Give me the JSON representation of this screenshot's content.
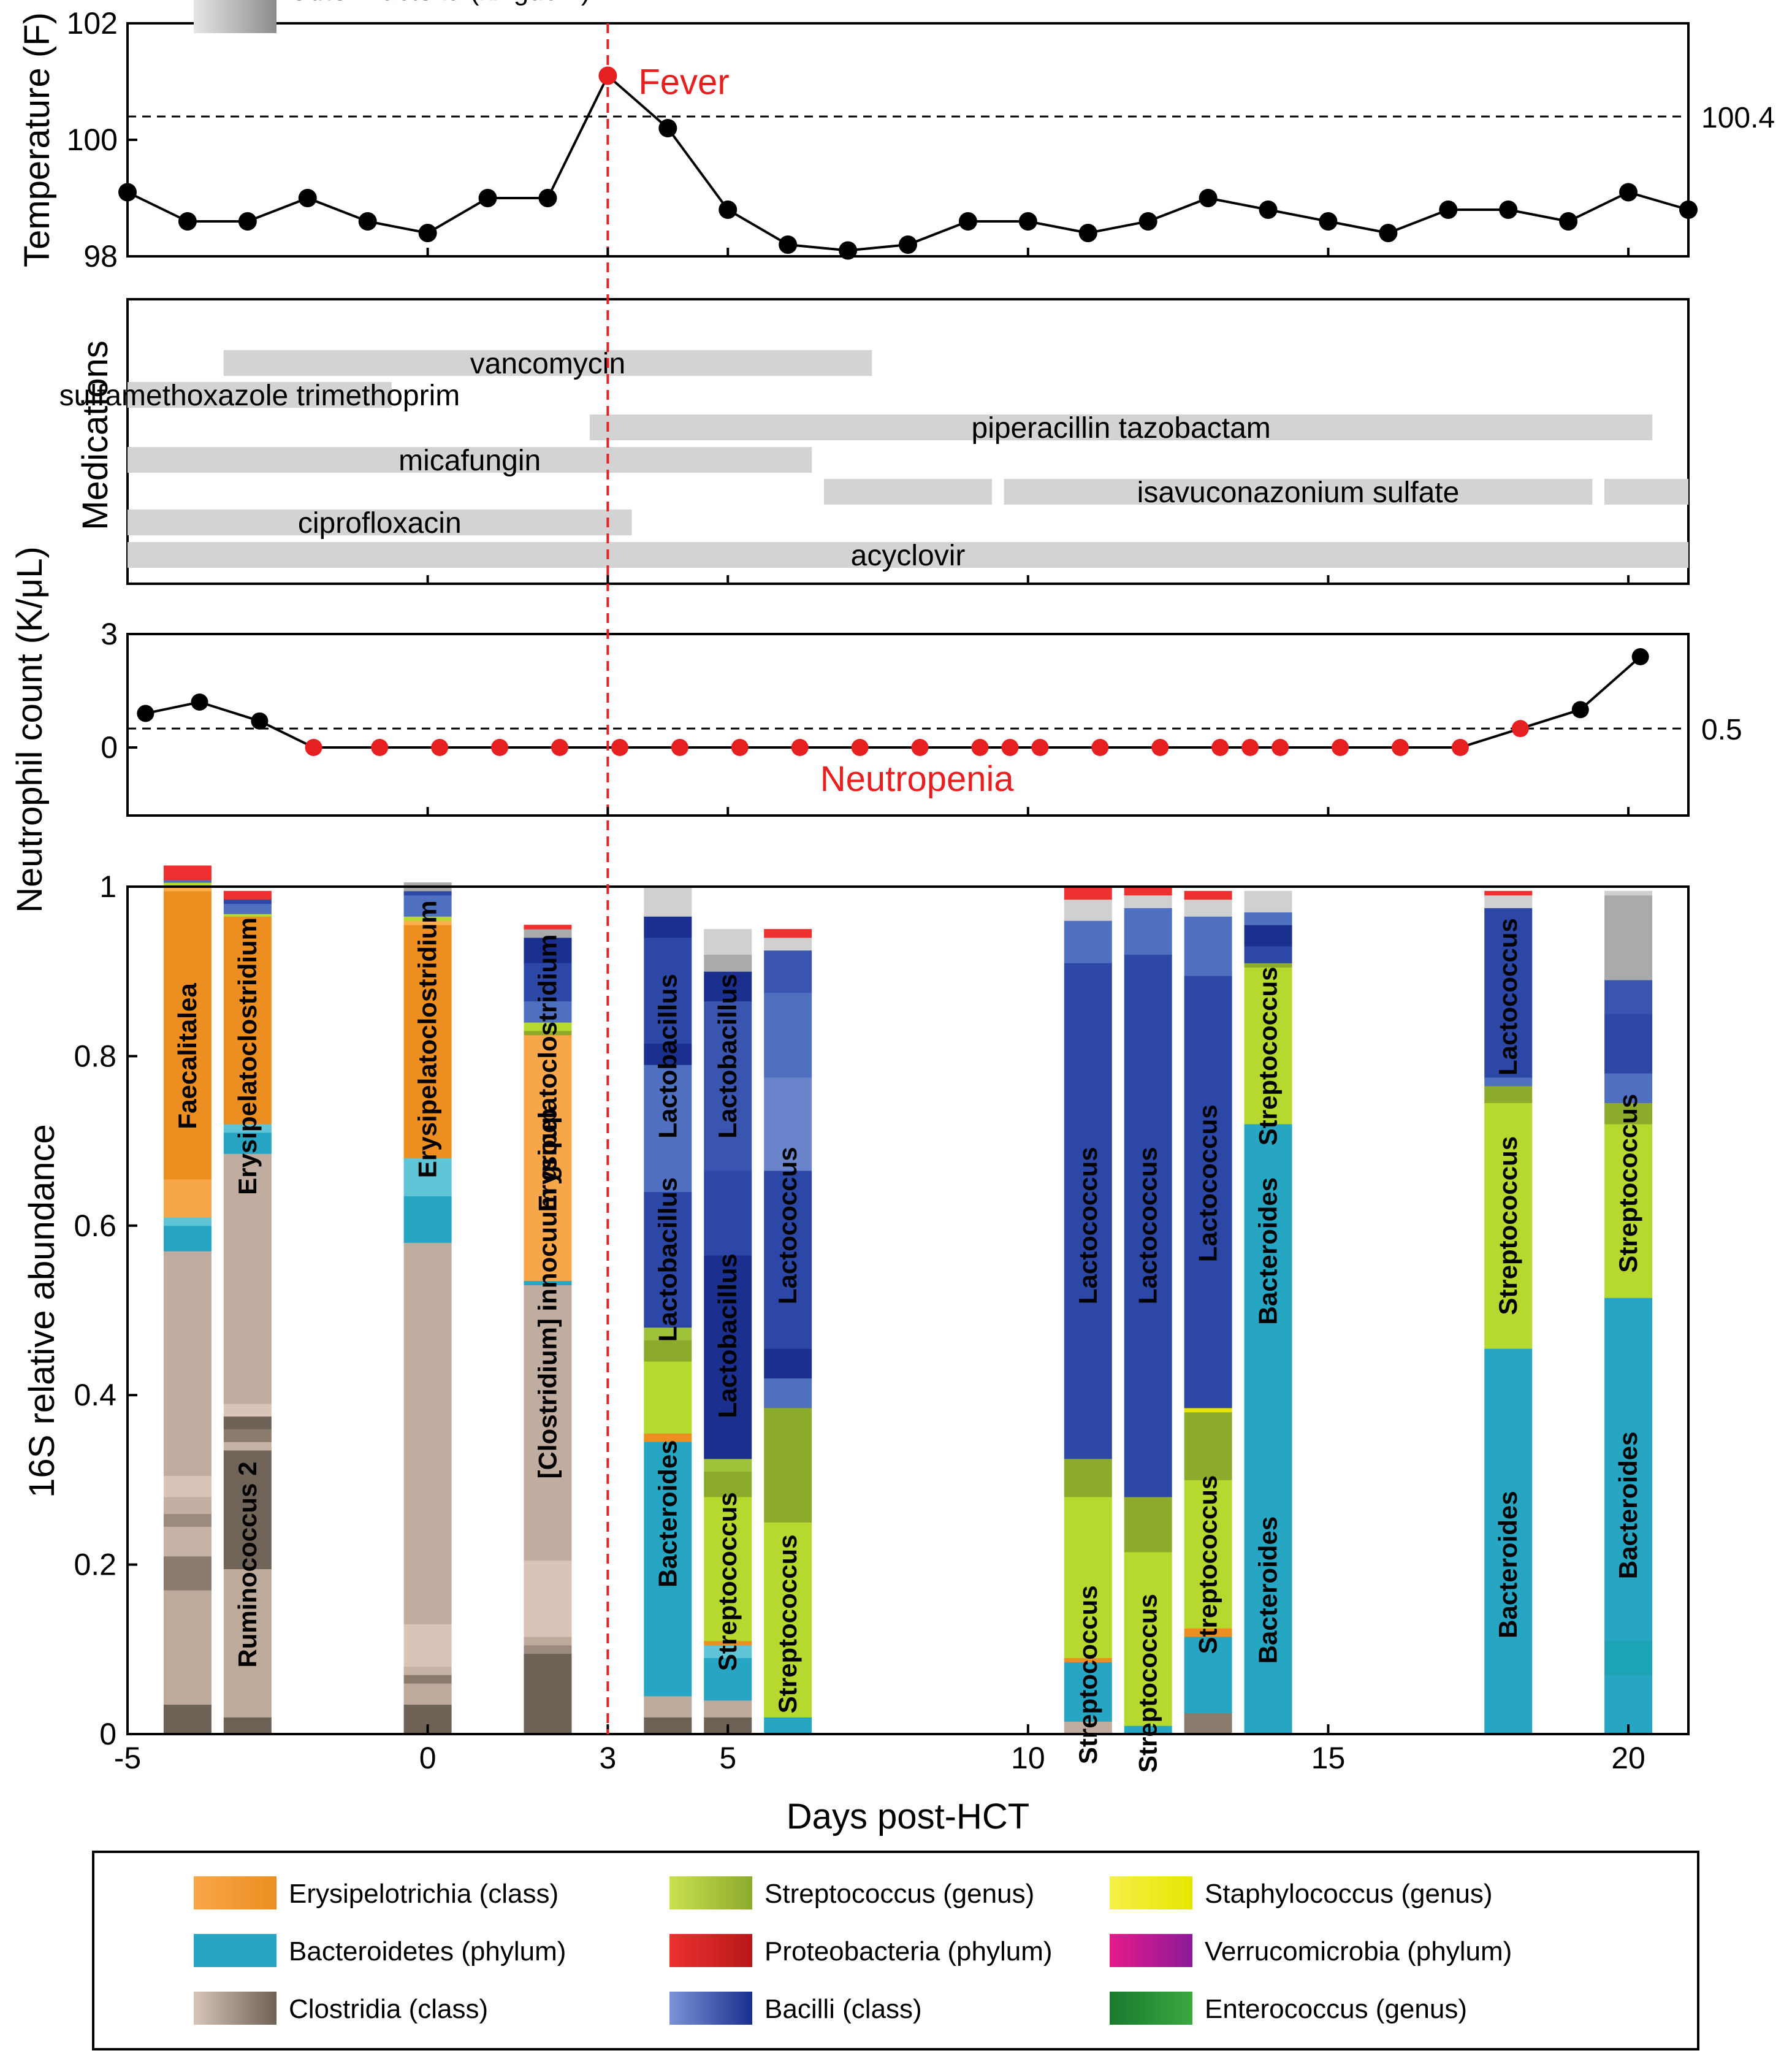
{
  "chart_data": [
    {
      "type": "line",
      "ylabel": "Temperature (F)",
      "ylim": [
        98,
        102
      ],
      "yticks": [
        "98",
        "100",
        "102"
      ],
      "threshold": {
        "value": 100.4,
        "label": "100.4"
      },
      "annotation": "Fever",
      "x": [
        -5,
        -4,
        -3,
        -2,
        -1,
        0,
        1,
        2,
        3,
        4,
        5,
        6,
        7,
        8,
        9,
        10,
        11,
        12,
        13,
        14,
        15,
        16,
        17,
        18,
        19,
        20,
        21
      ],
      "y": [
        99.1,
        98.6,
        98.6,
        99.0,
        98.6,
        98.4,
        99.0,
        99.0,
        101.1,
        100.2,
        98.8,
        98.2,
        98.1,
        98.2,
        98.6,
        98.6,
        98.4,
        98.6,
        99.0,
        98.8,
        98.6,
        98.4,
        98.8,
        98.8,
        98.6,
        99.1,
        98.8
      ],
      "highlight_x": 3,
      "colors": {
        "normal": "#000000",
        "highlight": "#e62020"
      }
    },
    {
      "type": "bar",
      "orientation": "horizontal",
      "ylabel": "Medications",
      "bar_color": "#d3d3d3",
      "medications": [
        {
          "name": "vancomycin",
          "segments": [
            [
              -3.4,
              7.4
            ]
          ]
        },
        {
          "name": "sulfamethoxazole trimethoprim",
          "segments": [
            [
              -5,
              -0.6
            ]
          ]
        },
        {
          "name": "piperacillin tazobactam",
          "segments": [
            [
              2.7,
              20.4
            ]
          ]
        },
        {
          "name": "micafungin",
          "segments": [
            [
              -5,
              6.4
            ]
          ]
        },
        {
          "name": "isavuconazonium sulfate",
          "segments": [
            [
              6.6,
              9.4
            ],
            [
              9.6,
              19.4
            ],
            [
              19.6,
              21
            ]
          ]
        },
        {
          "name": "ciprofloxacin",
          "segments": [
            [
              -5,
              3.4
            ]
          ]
        },
        {
          "name": "acyclovir",
          "segments": [
            [
              -5,
              21
            ]
          ]
        }
      ]
    },
    {
      "type": "line",
      "ylabel": "Neutrophil count (K/μL)",
      "ylim": [
        -1.8,
        3
      ],
      "yticks": [
        "0",
        "3"
      ],
      "threshold": {
        "value": 0.5,
        "label": "0.5"
      },
      "annotation": "Neutropenia",
      "x": [
        -4.7,
        -3.8,
        -2.8,
        -1.9,
        -0.8,
        0.2,
        1.2,
        2.2,
        3.2,
        4.2,
        5.2,
        6.2,
        7.2,
        8.2,
        9.2,
        9.7,
        10.2,
        11.2,
        12.2,
        13.2,
        13.7,
        14.2,
        15.2,
        16.2,
        17.2,
        18.2,
        19.2,
        20.2
      ],
      "y": [
        0.9,
        1.2,
        0.7,
        0,
        0,
        0,
        0,
        0,
        0,
        0,
        0,
        0,
        0,
        0,
        0,
        0,
        0,
        0,
        0,
        0,
        0,
        0,
        0,
        0,
        0,
        0.5,
        1.0,
        2.4
      ],
      "highlight_range": [
        -1.9,
        18.2
      ],
      "colors": {
        "normal": "#000000",
        "highlight": "#e62020"
      }
    },
    {
      "type": "bar",
      "stacked": true,
      "xlabel": "Days post-HCT",
      "ylabel": "16S relative abundance",
      "xlim": [
        -5,
        21
      ],
      "xticks": [
        "-5",
        "0",
        "3",
        "5",
        "10",
        "15",
        "20"
      ],
      "xtick_values": [
        -5,
        0,
        3,
        5,
        10,
        15,
        20
      ],
      "ylim": [
        0,
        1
      ],
      "yticks": [
        "0",
        "0.2",
        "0.4",
        "0.6",
        "0.8",
        "1"
      ],
      "event_day": 3,
      "samples": [
        {
          "day": -4,
          "segments": [
            [
              "#6e6155",
              0.035
            ],
            [
              "#bdaa9b",
              0.135
            ],
            [
              "#8a7b6d",
              0.04
            ],
            [
              "#c6b3a5",
              0.035
            ],
            [
              "#9b8a7d",
              0.015
            ],
            [
              "#c4b0a2",
              0.02
            ],
            [
              "#d8c5b7",
              0.025
            ],
            [
              "#c0ad9f",
              0.265
            ],
            [
              "#27a6c3",
              0.03
            ],
            [
              "#5ec4d6",
              0.01
            ],
            [
              "#f7a649",
              0.045
            ],
            [
              "#ec8f20",
              0.34
            ],
            [
              "#ffb04e",
              0.005
            ],
            [
              "#b5d92e",
              0.005
            ],
            [
              "#4f6fc0",
              0.003
            ],
            [
              "#ee3030",
              0.017
            ]
          ],
          "labels": [
            [
              "Faecalitalea",
              0.8
            ]
          ]
        },
        {
          "day": -3,
          "segments": [
            [
              "#6e6155",
              0.02
            ],
            [
              "#bdaa9b",
              0.175
            ],
            [
              "#716459",
              0.14
            ],
            [
              "#c6b3a5",
              0.01
            ],
            [
              "#8a7b6d",
              0.015
            ],
            [
              "#6e6155",
              0.015
            ],
            [
              "#d8c5b7",
              0.015
            ],
            [
              "#c0ad9f",
              0.295
            ],
            [
              "#27a6c3",
              0.025
            ],
            [
              "#5ec4d6",
              0.01
            ],
            [
              "#ec8f20",
              0.245
            ],
            [
              "#b5d92e",
              0.003
            ],
            [
              "#4f6fc0",
              0.012
            ],
            [
              "#2c47a5",
              0.005
            ],
            [
              "#ee3030",
              0.01
            ]
          ],
          "labels": [
            [
              "Ruminococcus 2",
              0.2
            ],
            [
              "Erysipelatoclostridium",
              0.8
            ]
          ]
        },
        {
          "day": 0,
          "segments": [
            [
              "#6e6155",
              0.035
            ],
            [
              "#bdaa9b",
              0.025
            ],
            [
              "#8a7b6d",
              0.01
            ],
            [
              "#c6b3a5",
              0.01
            ],
            [
              "#d8c5b7",
              0.05
            ],
            [
              "#c0ad9f",
              0.45
            ],
            [
              "#27a6c3",
              0.055
            ],
            [
              "#5ec4d6",
              0.045
            ],
            [
              "#ec8f20",
              0.275
            ],
            [
              "#ffb04e",
              0.005
            ],
            [
              "#b5d92e",
              0.005
            ],
            [
              "#4f6fc0",
              0.025
            ],
            [
              "#2c47a5",
              0.005
            ],
            [
              "#aaaaaa",
              0.01
            ]
          ],
          "labels": [
            [
              "Erysipelatoclostridium",
              0.82
            ]
          ]
        },
        {
          "day": 2,
          "segments": [
            [
              "#6e6155",
              0.095
            ],
            [
              "#9b8a7d",
              0.01
            ],
            [
              "#bdaa9b",
              0.01
            ],
            [
              "#d8c5b7",
              0.09
            ],
            [
              "#c0ad9f",
              0.325
            ],
            [
              "#27a6c3",
              0.005
            ],
            [
              "#f7a649",
              0.29
            ],
            [
              "#8cab2b",
              0.005
            ],
            [
              "#b5d92e",
              0.01
            ],
            [
              "#4f6fc0",
              0.025
            ],
            [
              "#2c47a5",
              0.045
            ],
            [
              "#1a2f8e",
              0.03
            ],
            [
              "#aaaaaa",
              0.01
            ],
            [
              "#ee3030",
              0.005
            ]
          ],
          "labels": [
            [
              "[Clostridium] innocuum group",
              0.52
            ],
            [
              "Erysipelatoclostridium",
              0.78
            ]
          ]
        },
        {
          "day": 4,
          "segments": [
            [
              "#6e6155",
              0.02
            ],
            [
              "#bdaa9b",
              0.025
            ],
            [
              "#27a6c3",
              0.3
            ],
            [
              "#ec8f20",
              0.01
            ],
            [
              "#b5d92e",
              0.085
            ],
            [
              "#8cab2b",
              0.025
            ],
            [
              "#a0c23b",
              0.015
            ],
            [
              "#2c47a5",
              0.16
            ],
            [
              "#4f6fc0",
              0.15
            ],
            [
              "#1a2f8e",
              0.025
            ],
            [
              "#2c47a5",
              0.125
            ],
            [
              "#1a2f8e",
              0.025
            ],
            [
              "#d0d0d0",
              0.035
            ]
          ],
          "labels": [
            [
              "Bacteroides",
              0.26
            ],
            [
              "Lactobacillus",
              0.56
            ],
            [
              "Lactobacillus",
              0.8
            ]
          ]
        },
        {
          "day": 5,
          "segments": [
            [
              "#6e6155",
              0.02
            ],
            [
              "#bdaa9b",
              0.02
            ],
            [
              "#27a6c3",
              0.05
            ],
            [
              "#5ec4d6",
              0.015
            ],
            [
              "#ec8f20",
              0.005
            ],
            [
              "#b5d92e",
              0.17
            ],
            [
              "#8cab2b",
              0.03
            ],
            [
              "#a0c23b",
              0.015
            ],
            [
              "#1a2f8e",
              0.24
            ],
            [
              "#2c47a5",
              0.1
            ],
            [
              "#3a55b0",
              0.2
            ],
            [
              "#1a2f8e",
              0.035
            ],
            [
              "#aaaaaa",
              0.02
            ],
            [
              "#d0d0d0",
              0.03
            ]
          ],
          "labels": [
            [
              "Streptococcus",
              0.18
            ],
            [
              "Lactobacillus",
              0.47
            ],
            [
              "Lactobacillus",
              0.8
            ]
          ]
        },
        {
          "day": 6,
          "segments": [
            [
              "#27a6c3",
              0.02
            ],
            [
              "#b5d92e",
              0.23
            ],
            [
              "#8cab2b",
              0.135
            ],
            [
              "#4f6fc0",
              0.035
            ],
            [
              "#1a2f8e",
              0.035
            ],
            [
              "#2c47a5",
              0.21
            ],
            [
              "#6b85cc",
              0.11
            ],
            [
              "#4f6fc0",
              0.1
            ],
            [
              "#3a55b0",
              0.05
            ],
            [
              "#d0d0d0",
              0.015
            ],
            [
              "#ee3030",
              0.01
            ]
          ],
          "labels": [
            [
              "Streptococcus",
              0.13
            ],
            [
              "Lactococcus",
              0.6
            ]
          ]
        },
        {
          "day": 11,
          "segments": [
            [
              "#c0ad9f",
              0.015
            ],
            [
              "#27a6c3",
              0.07
            ],
            [
              "#ec8f20",
              0.005
            ],
            [
              "#b5d92e",
              0.19
            ],
            [
              "#8cab2b",
              0.045
            ],
            [
              "#2c47a5",
              0.585
            ],
            [
              "#4f6fc0",
              0.05
            ],
            [
              "#d0d0d0",
              0.025
            ],
            [
              "#ee3030",
              0.015
            ]
          ],
          "labels": [
            [
              "Streptococcus",
              0.07
            ],
            [
              "Lactococcus",
              0.6
            ]
          ]
        },
        {
          "day": 12,
          "segments": [
            [
              "#27a6c3",
              0.01
            ],
            [
              "#b5d92e",
              0.205
            ],
            [
              "#8cab2b",
              0.065
            ],
            [
              "#2c47a5",
              0.64
            ],
            [
              "#4f6fc0",
              0.055
            ],
            [
              "#d0d0d0",
              0.015
            ],
            [
              "#ee3030",
              0.01
            ]
          ],
          "labels": [
            [
              "Streptococcus",
              0.06
            ],
            [
              "Lactococcus",
              0.6
            ]
          ]
        },
        {
          "day": 13,
          "segments": [
            [
              "#8a7b6d",
              0.025
            ],
            [
              "#27a6c3",
              0.09
            ],
            [
              "#ec8f20",
              0.01
            ],
            [
              "#b5d92e",
              0.175
            ],
            [
              "#8cab2b",
              0.08
            ],
            [
              "#e6e600",
              0.005
            ],
            [
              "#2c47a5",
              0.51
            ],
            [
              "#4f6fc0",
              0.07
            ],
            [
              "#d0d0d0",
              0.02
            ],
            [
              "#ee3030",
              0.01
            ]
          ],
          "labels": [
            [
              "Streptococcus",
              0.2
            ],
            [
              "Lactococcus",
              0.65
            ]
          ]
        },
        {
          "day": 14,
          "segments": [
            [
              "#27a6c3",
              0.72
            ],
            [
              "#b5d92e",
              0.185
            ],
            [
              "#8cab2b",
              0.005
            ],
            [
              "#2c47a5",
              0.02
            ],
            [
              "#1a2f8e",
              0.025
            ],
            [
              "#4f6fc0",
              0.015
            ],
            [
              "#d0d0d0",
              0.025
            ]
          ],
          "labels": [
            [
              "Bacteroides",
              0.17
            ],
            [
              "Bacteroides",
              0.57
            ],
            [
              "Streptococcus",
              0.8
            ]
          ]
        },
        {
          "day": 18,
          "segments": [
            [
              "#27a6c3",
              0.455
            ],
            [
              "#b5d92e",
              0.29
            ],
            [
              "#8cab2b",
              0.02
            ],
            [
              "#4f6fc0",
              0.01
            ],
            [
              "#2c47a5",
              0.2
            ],
            [
              "#d0d0d0",
              0.015
            ],
            [
              "#ee3030",
              0.005
            ]
          ],
          "labels": [
            [
              "Bacteroides",
              0.2
            ],
            [
              "Streptococcus",
              0.6
            ],
            [
              "Lactococcus",
              0.87
            ]
          ]
        },
        {
          "day": 20,
          "segments": [
            [
              "#27a6c3",
              0.07
            ],
            [
              "#1ca4b5",
              0.04
            ],
            [
              "#27a6c3",
              0.405
            ],
            [
              "#b5d92e",
              0.205
            ],
            [
              "#8cab2b",
              0.025
            ],
            [
              "#4f6fc0",
              0.035
            ],
            [
              "#2c47a5",
              0.07
            ],
            [
              "#3a55b0",
              0.04
            ],
            [
              "#aaaaaa",
              0.1
            ],
            [
              "#d0d0d0",
              0.005
            ]
          ],
          "labels": [
            [
              "Bacteroides",
              0.27
            ],
            [
              "Streptococcus",
              0.65
            ]
          ]
        }
      ]
    }
  ],
  "legend": [
    {
      "label": "Erysipelotrichia (class)",
      "from": "#f7a649",
      "to": "#ec8f20"
    },
    {
      "label": "Streptococcus (genus)",
      "from": "#c9e050",
      "to": "#8cab2b"
    },
    {
      "label": "Staphylococcus (genus)",
      "from": "#f5f04a",
      "to": "#e6e600"
    },
    {
      "label": "Bacteroidetes (phylum)",
      "from": "#27a6c3",
      "to": "#27a6c3"
    },
    {
      "label": "Proteobacteria (phylum)",
      "from": "#ee3030",
      "to": "#b81818"
    },
    {
      "label": "Verrucomicrobia (phylum)",
      "from": "#e61a8a",
      "to": "#8c1a9a"
    },
    {
      "label": "Clostridia (class)",
      "from": "#d8c5b7",
      "to": "#6e6155"
    },
    {
      "label": "Bacilli (class)",
      "from": "#7b93d6",
      "to": "#1a2f8e"
    },
    {
      "label": "Enterococcus (genus)",
      "from": "#1a7a2e",
      "to": "#3aa840"
    },
    {
      "label": "Other Bacteria (kingdom)",
      "from": "#e6e6e6",
      "to": "#8c8c8c"
    }
  ],
  "colors": {
    "event": "#e62020",
    "axis": "#000000"
  }
}
